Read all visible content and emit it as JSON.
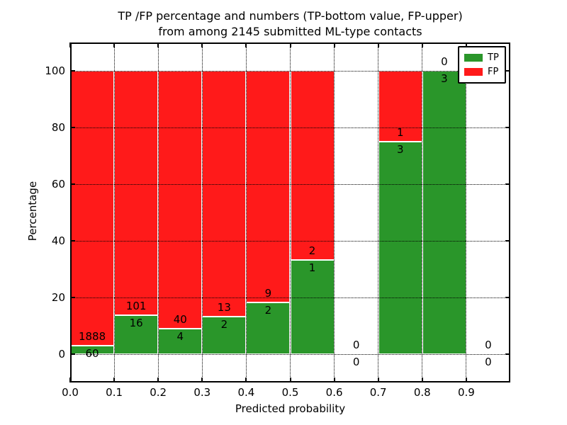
{
  "title_line1": "TP /FP percentage and numbers (TP-bottom value, FP-upper)",
  "title_line2": "from among 2145 submitted ML-type contacts",
  "chart_data": {
    "type": "bar",
    "stacked": true,
    "title": "TP /FP percentage and numbers (TP-bottom value, FP-upper) from among 2145 submitted ML-type contacts",
    "xlabel": "Predicted probability",
    "ylabel": "Percentage",
    "total_contacts": 2145,
    "xlim": [
      0.0,
      1.0
    ],
    "ylim": [
      -10,
      110
    ],
    "bin_width": 0.1,
    "x_bins": [
      0.0,
      0.1,
      0.2,
      0.3,
      0.4,
      0.5,
      0.6,
      0.7,
      0.8,
      0.9
    ],
    "series": [
      {
        "name": "TP",
        "color": "#2a962a",
        "counts": [
          60,
          16,
          4,
          2,
          2,
          1,
          0,
          3,
          3,
          0
        ]
      },
      {
        "name": "FP",
        "color": "#ff1a1a",
        "counts": [
          1888,
          101,
          40,
          13,
          9,
          2,
          0,
          1,
          0,
          0
        ]
      }
    ],
    "tp_percent": [
      3.08,
      13.68,
      9.09,
      13.33,
      18.18,
      33.33,
      0,
      75,
      100,
      0
    ],
    "xticks": [
      "0.0",
      "0.1",
      "0.2",
      "0.3",
      "0.4",
      "0.5",
      "0.6",
      "0.7",
      "0.8",
      "0.9"
    ],
    "yticks": [
      "0",
      "20",
      "40",
      "60",
      "80",
      "100"
    ],
    "grid": "dotted",
    "grid_color": "#000000",
    "legend_position": "upper right",
    "legend_labels": [
      "TP",
      "FP"
    ]
  }
}
